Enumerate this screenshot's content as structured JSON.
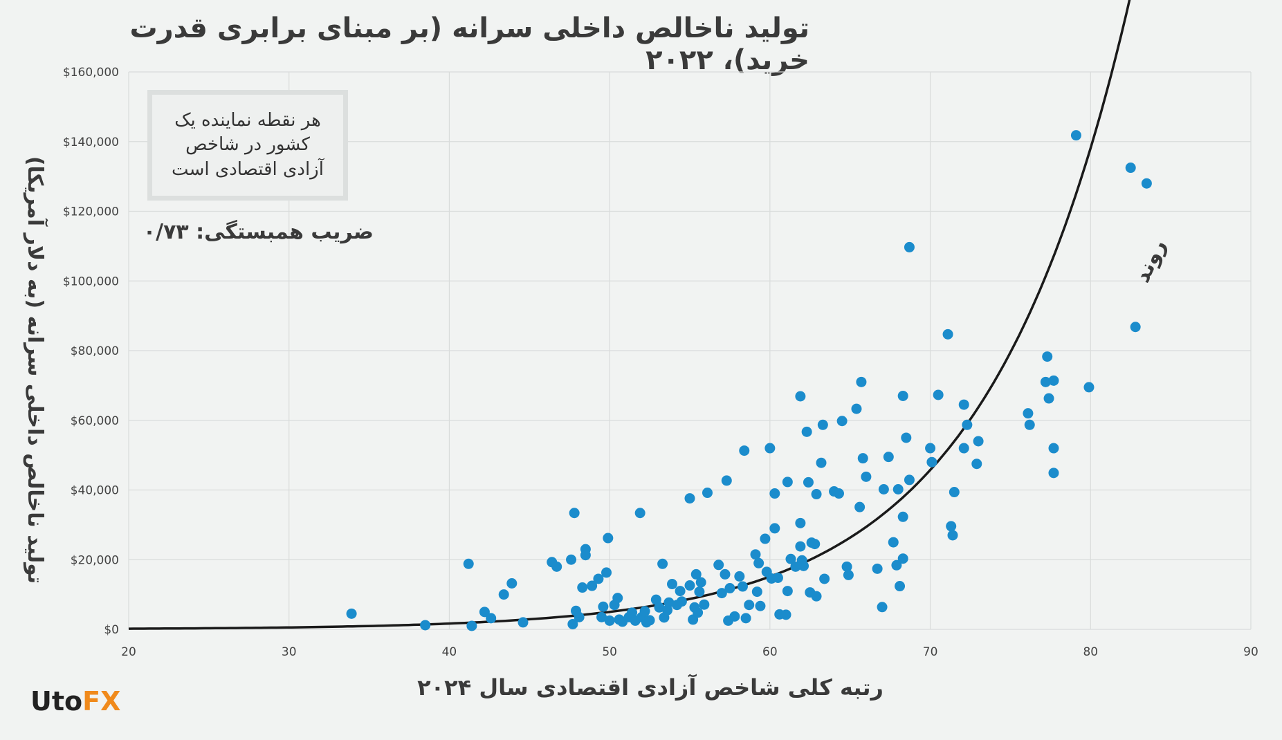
{
  "title": "تولید ناخالص داخلی سرانه (بر مبنای برابری قدرت خرید)، ۲۰۲۲",
  "note": "هر نقطه نماینده یک کشور در شاخص آزادی اقتصادی است",
  "correlation": "ضریب همبستگی: ۰/۷۳",
  "trend_label": "روند",
  "logo": {
    "part1": "Uto",
    "part2": "FX"
  },
  "colors": {
    "point": "#1b8ccc",
    "trend": "#1a1a1a",
    "grid": "#d9dcdb"
  },
  "chart_data": {
    "type": "scatter",
    "title": "تولید ناخالص داخلی سرانه (بر مبنای برابری قدرت خرید)، ۲۰۲۲",
    "xlabel": "رتبه کلی شاخص آزادی اقتصادی سال ۲۰۲۴",
    "ylabel": "تولید ناخالص داخلی سرانه (به دلار آمریکا)",
    "xlim": [
      20,
      90
    ],
    "ylim": [
      0,
      160000
    ],
    "x_ticks": [
      20,
      30,
      40,
      50,
      60,
      70,
      80,
      90
    ],
    "y_ticks": [
      "$0",
      "$20,000",
      "$40,000",
      "$60,000",
      "$80,000",
      "$100,000",
      "$120,000",
      "$140,000",
      "$160,000"
    ],
    "grid": true,
    "trend": {
      "type": "exponential",
      "x_range": [
        20,
        83.5
      ],
      "a": 20,
      "b": 0.1105
    },
    "points": [
      [
        33.9,
        4500
      ],
      [
        38.5,
        1200
      ],
      [
        41.2,
        18800
      ],
      [
        41.4,
        1000
      ],
      [
        42.2,
        5000
      ],
      [
        42.6,
        3200
      ],
      [
        43.4,
        10000
      ],
      [
        43.9,
        13200
      ],
      [
        44.6,
        2000
      ],
      [
        46.4,
        19300
      ],
      [
        46.7,
        18000
      ],
      [
        47.6,
        20000
      ],
      [
        47.7,
        1500
      ],
      [
        47.8,
        33400
      ],
      [
        47.9,
        5300
      ],
      [
        48.1,
        3500
      ],
      [
        48.3,
        12000
      ],
      [
        48.5,
        23000
      ],
      [
        48.5,
        21300
      ],
      [
        48.9,
        12500
      ],
      [
        49.3,
        14500
      ],
      [
        49.5,
        3500
      ],
      [
        49.6,
        6500
      ],
      [
        49.8,
        16300
      ],
      [
        49.9,
        26200
      ],
      [
        50.0,
        2500
      ],
      [
        50.3,
        7000
      ],
      [
        50.5,
        9000
      ],
      [
        50.6,
        2800
      ],
      [
        50.8,
        2200
      ],
      [
        51.2,
        3500
      ],
      [
        51.4,
        4800
      ],
      [
        51.6,
        2500
      ],
      [
        51.9,
        33400
      ],
      [
        52.0,
        3500
      ],
      [
        52.2,
        5200
      ],
      [
        52.3,
        2000
      ],
      [
        52.5,
        2600
      ],
      [
        52.9,
        8500
      ],
      [
        53.1,
        6300
      ],
      [
        53.3,
        18800
      ],
      [
        53.4,
        3400
      ],
      [
        53.6,
        5500
      ],
      [
        53.7,
        7700
      ],
      [
        53.9,
        13000
      ],
      [
        54.2,
        7000
      ],
      [
        54.4,
        11000
      ],
      [
        54.5,
        8000
      ],
      [
        55.0,
        37600
      ],
      [
        55.0,
        12600
      ],
      [
        55.2,
        2800
      ],
      [
        55.3,
        6300
      ],
      [
        55.4,
        15800
      ],
      [
        55.5,
        4800
      ],
      [
        55.6,
        10800
      ],
      [
        55.7,
        13500
      ],
      [
        55.9,
        7100
      ],
      [
        56.1,
        39200
      ],
      [
        56.8,
        18500
      ],
      [
        57.0,
        10400
      ],
      [
        57.2,
        15800
      ],
      [
        57.3,
        42700
      ],
      [
        57.4,
        2500
      ],
      [
        57.5,
        11800
      ],
      [
        57.8,
        3700
      ],
      [
        58.1,
        15200
      ],
      [
        58.3,
        12300
      ],
      [
        58.4,
        51300
      ],
      [
        58.5,
        3200
      ],
      [
        58.7,
        7000
      ],
      [
        59.1,
        21500
      ],
      [
        59.2,
        10800
      ],
      [
        59.3,
        19000
      ],
      [
        59.4,
        6700
      ],
      [
        59.7,
        26000
      ],
      [
        59.8,
        16500
      ],
      [
        60.0,
        52000
      ],
      [
        60.1,
        14600
      ],
      [
        60.3,
        39000
      ],
      [
        60.3,
        29000
      ],
      [
        60.5,
        14800
      ],
      [
        60.6,
        4300
      ],
      [
        61.0,
        4200
      ],
      [
        61.1,
        42300
      ],
      [
        61.1,
        11000
      ],
      [
        61.3,
        20200
      ],
      [
        61.6,
        18000
      ],
      [
        61.9,
        66900
      ],
      [
        61.9,
        30500
      ],
      [
        61.9,
        23800
      ],
      [
        62.0,
        19800
      ],
      [
        62.1,
        18200
      ],
      [
        62.3,
        56700
      ],
      [
        62.4,
        42200
      ],
      [
        62.5,
        10600
      ],
      [
        62.6,
        24900
      ],
      [
        62.8,
        24500
      ],
      [
        62.9,
        38800
      ],
      [
        62.9,
        9500
      ],
      [
        63.2,
        47800
      ],
      [
        63.3,
        58700
      ],
      [
        63.4,
        14500
      ],
      [
        64.0,
        39600
      ],
      [
        64.3,
        39000
      ],
      [
        64.5,
        59800
      ],
      [
        64.8,
        18000
      ],
      [
        64.9,
        15600
      ],
      [
        65.4,
        63300
      ],
      [
        65.6,
        35100
      ],
      [
        65.7,
        71000
      ],
      [
        65.8,
        49100
      ],
      [
        66.0,
        43800
      ],
      [
        66.7,
        17400
      ],
      [
        67.0,
        6400
      ],
      [
        67.1,
        40200
      ],
      [
        67.4,
        49500
      ],
      [
        67.7,
        25000
      ],
      [
        67.9,
        18400
      ],
      [
        68.0,
        40200
      ],
      [
        68.1,
        12400
      ],
      [
        68.3,
        67000
      ],
      [
        68.3,
        20300
      ],
      [
        68.5,
        55000
      ],
      [
        68.7,
        109700
      ],
      [
        68.7,
        42900
      ],
      [
        68.3,
        32300
      ],
      [
        70.0,
        52000
      ],
      [
        70.1,
        48000
      ],
      [
        70.5,
        67300
      ],
      [
        71.1,
        84700
      ],
      [
        71.3,
        29600
      ],
      [
        71.5,
        39400
      ],
      [
        71.4,
        27000
      ],
      [
        72.1,
        64500
      ],
      [
        72.3,
        58700
      ],
      [
        72.1,
        52000
      ],
      [
        72.9,
        47500
      ],
      [
        73.0,
        54000
      ],
      [
        76.1,
        62000
      ],
      [
        76.2,
        58700
      ],
      [
        77.2,
        71000
      ],
      [
        77.3,
        78300
      ],
      [
        77.4,
        66300
      ],
      [
        77.7,
        71400
      ],
      [
        77.7,
        52000
      ],
      [
        77.7,
        44900
      ],
      [
        79.1,
        141800
      ],
      [
        79.9,
        69500
      ],
      [
        82.5,
        132500
      ],
      [
        82.8,
        86800
      ],
      [
        83.5,
        128000
      ]
    ]
  }
}
